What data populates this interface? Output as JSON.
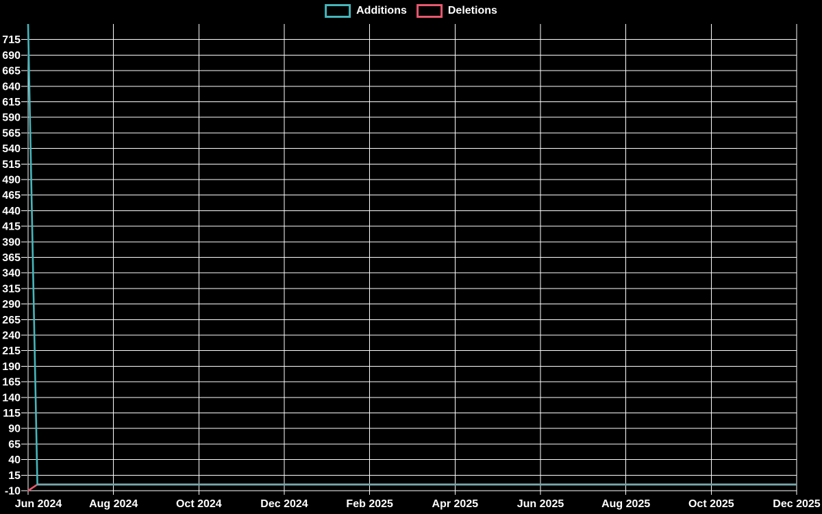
{
  "page": {
    "background": "#000000",
    "text_color": "#ffffff"
  },
  "chart_data": {
    "type": "line",
    "title": "",
    "grid": true,
    "legend_position": "top-center",
    "background": "#000000",
    "gridline_color": "#ffffff",
    "x_axis": {
      "tick_labels": [
        "Jun 2024",
        "Aug 2024",
        "Oct 2024",
        "Dec 2024",
        "Feb 2025",
        "Apr 2025",
        "Jun 2025",
        "Aug 2025",
        "Oct 2025",
        "Dec 2025"
      ]
    },
    "y_axis": {
      "min": -10,
      "max": 740,
      "tick_step": 25,
      "tick_labels": [
        "-10",
        "15",
        "40",
        "65",
        "90",
        "115",
        "140",
        "165",
        "190",
        "215",
        "240",
        "265",
        "290",
        "315",
        "340",
        "365",
        "390",
        "415",
        "440",
        "465",
        "490",
        "515",
        "540",
        "565",
        "590",
        "615",
        "640",
        "665",
        "690",
        "715"
      ]
    },
    "series": [
      {
        "name": "Additions",
        "color": "#46b6bb",
        "x_unit": "fraction of x-axis (Jun 2024 to Dec 2025)",
        "points": [
          [
            0,
            740
          ],
          [
            0.0121,
            0
          ],
          [
            1,
            0
          ]
        ]
      },
      {
        "name": "Deletions",
        "color": "#e9586f",
        "x_unit": "fraction of x-axis (Jun 2024 to Dec 2025)",
        "points": [
          [
            0,
            -10
          ],
          [
            0.0121,
            0
          ],
          [
            1,
            0
          ]
        ]
      }
    ],
    "overlap_line_color": "#7fa6ab"
  }
}
